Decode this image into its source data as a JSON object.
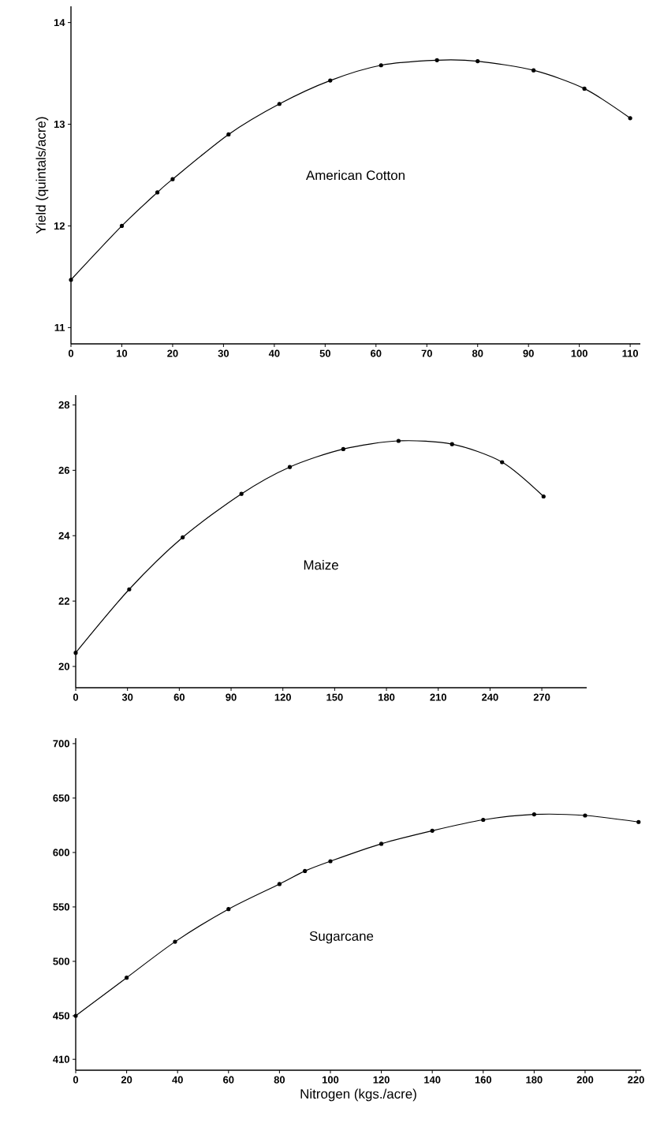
{
  "chart_data": [
    {
      "type": "line",
      "ylabel": "Yield (quintals/acre)",
      "annotations": [
        "American Cotton"
      ],
      "x": [
        0,
        10,
        17,
        20,
        31,
        41,
        51,
        61,
        72,
        80,
        91,
        101,
        110
      ],
      "series": [
        {
          "color": "#000000",
          "values": [
            11.47,
            12.0,
            12.33,
            12.46,
            12.9,
            13.2,
            13.43,
            13.58,
            13.63,
            13.62,
            13.53,
            13.35,
            13.06
          ]
        }
      ],
      "xlim": [
        0,
        112
      ],
      "ylim": [
        10.84,
        14.16
      ],
      "xticks": [
        0,
        10,
        20,
        30,
        40,
        50,
        60,
        70,
        80,
        90,
        100,
        110
      ],
      "yticks": [
        11,
        12,
        13,
        14
      ],
      "marker": "circle",
      "line_style": "solid",
      "grid": false
    },
    {
      "type": "line",
      "annotations": [
        "Maize"
      ],
      "x": [
        0,
        31,
        62,
        96,
        124,
        155,
        187,
        218,
        247,
        271
      ],
      "series": [
        {
          "color": "#000000",
          "values": [
            20.42,
            22.36,
            23.95,
            25.28,
            26.1,
            26.65,
            26.9,
            26.8,
            26.25,
            25.2
          ]
        }
      ],
      "xlim": [
        0,
        296
      ],
      "ylim": [
        19.35,
        28.3
      ],
      "xticks": [
        0,
        30,
        60,
        90,
        120,
        150,
        180,
        210,
        240,
        270
      ],
      "yticks": [
        20,
        22,
        24,
        26,
        28
      ],
      "marker": "circle",
      "line_style": "solid",
      "grid": false
    },
    {
      "type": "line",
      "xlabel": "Nitrogen (kgs./acre)",
      "annotations": [
        "Sugarcane"
      ],
      "x": [
        0,
        20,
        39,
        60,
        80,
        90,
        100,
        120,
        140,
        160,
        180,
        200,
        221
      ],
      "series": [
        {
          "color": "#000000",
          "values": [
            450,
            485,
            518,
            548,
            571,
            583,
            592,
            608,
            620,
            630,
            635,
            634,
            628
          ]
        }
      ],
      "xlim": [
        0,
        222
      ],
      "ylim": [
        400,
        705
      ],
      "xticks": [
        0,
        20,
        40,
        60,
        80,
        100,
        120,
        140,
        160,
        180,
        200,
        220
      ],
      "yticks": [
        410,
        450,
        500,
        550,
        600,
        650,
        700
      ],
      "marker": "circle",
      "line_style": "solid",
      "grid": false
    }
  ]
}
